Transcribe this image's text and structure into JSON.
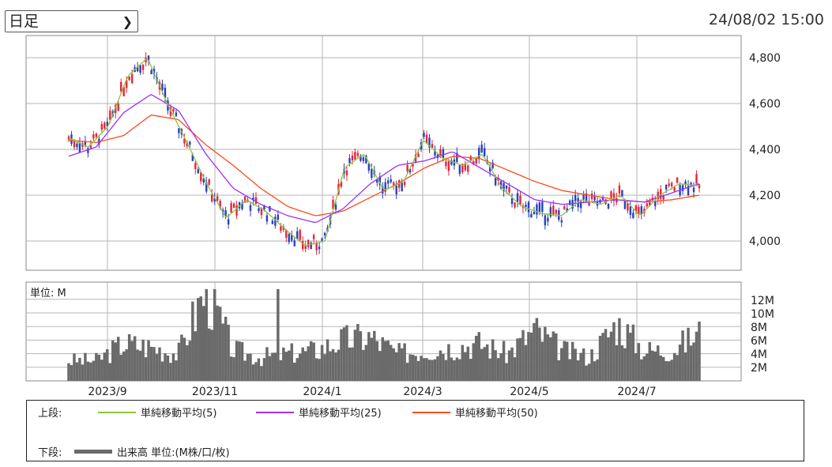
{
  "header": {
    "period_select": "日足",
    "timestamp": "24/08/02 15:00"
  },
  "colors": {
    "up": "#e8253a",
    "down": "#2a3fbf",
    "ma5": "#8cc63f",
    "ma25": "#9b30ff",
    "ma50": "#ff4a1a",
    "volume": "#6a6a6a",
    "grid": "#b5b5b5"
  },
  "legend": {
    "upper_label": "上段:",
    "lower_label": "下段:",
    "ma5_label": "単純移動平均(5)",
    "ma25_label": "単純移動平均(25)",
    "ma50_label": "単純移動平均(50)",
    "volume_label": "出来高 単位:(M株/口/枚)"
  },
  "chart_data": [
    {
      "type": "candlestick",
      "title": "",
      "y_ticks": [
        "4,000",
        "4,200",
        "4,400",
        "4,600",
        "4,800"
      ],
      "ylim": [
        3900,
        4900
      ],
      "x_ticks": [
        "2023/9",
        "2023/11",
        "2024/1",
        "2024/3",
        "2024/5",
        "2024/7"
      ],
      "grid": true,
      "series": [
        {
          "name": "単純移動平均(5)",
          "x": [
            "2023/8",
            "2023/8",
            "2023/9",
            "2023/9",
            "2023/9",
            "2023/10",
            "2023/10",
            "2023/10",
            "2023/11",
            "2023/11",
            "2023/11",
            "2023/12",
            "2023/12",
            "2024/1",
            "2024/1",
            "2024/1",
            "2024/2",
            "2024/2",
            "2024/2",
            "2024/3",
            "2024/3",
            "2024/3",
            "2024/4",
            "2024/4",
            "2024/5",
            "2024/5",
            "2024/5",
            "2024/6",
            "2024/6",
            "2024/7",
            "2024/7",
            "2024/7",
            "2024/8"
          ],
          "values": [
            4450,
            4410,
            4500,
            4720,
            4800,
            4600,
            4430,
            4250,
            4100,
            4180,
            4130,
            4050,
            3980,
            4000,
            4320,
            4380,
            4220,
            4260,
            4440,
            4360,
            4330,
            4380,
            4230,
            4150,
            4120,
            4110,
            4180,
            4160,
            4200,
            4110,
            4200,
            4250,
            4240
          ]
        },
        {
          "name": "単純移動平均(25)",
          "x": [
            "2023/8",
            "2023/9",
            "2023/9",
            "2023/10",
            "2023/10",
            "2023/11",
            "2023/11",
            "2023/12",
            "2023/12",
            "2024/1",
            "2024/1",
            "2024/2",
            "2024/2",
            "2024/3",
            "2024/3",
            "2024/4",
            "2024/4",
            "2024/5",
            "2024/5",
            "2024/6",
            "2024/6",
            "2024/7",
            "2024/7",
            "2024/8"
          ],
          "values": [
            4370,
            4410,
            4560,
            4640,
            4570,
            4380,
            4230,
            4160,
            4110,
            4080,
            4140,
            4250,
            4330,
            4350,
            4390,
            4320,
            4250,
            4180,
            4160,
            4170,
            4180,
            4170,
            4210,
            4250
          ]
        },
        {
          "name": "単純移動平均(50)",
          "x": [
            "2023/8",
            "2023/9",
            "2023/9",
            "2023/10",
            "2023/10",
            "2023/11",
            "2023/11",
            "2023/12",
            "2023/12",
            "2024/1",
            "2024/1",
            "2024/2",
            "2024/2",
            "2024/3",
            "2024/3",
            "2024/4",
            "2024/4",
            "2024/5",
            "2024/5",
            "2024/6",
            "2024/6",
            "2024/7",
            "2024/7",
            "2024/8"
          ],
          "values": [
            4440,
            4430,
            4460,
            4550,
            4530,
            4420,
            4330,
            4230,
            4150,
            4110,
            4130,
            4190,
            4250,
            4320,
            4370,
            4360,
            4310,
            4260,
            4220,
            4200,
            4180,
            4170,
            4180,
            4200
          ]
        }
      ]
    },
    {
      "type": "bar",
      "title": "",
      "unit_label": "単位: M",
      "y_ticks": [
        "2M",
        "4M",
        "6M",
        "8M",
        "10M",
        "12M"
      ],
      "ylim": [
        0,
        13.5
      ],
      "x_ticks": [
        "2023/9",
        "2023/11",
        "2024/1",
        "2024/3",
        "2024/5",
        "2024/7"
      ],
      "grid": true,
      "series": [
        {
          "name": "出来高",
          "x": [
            "2023/8",
            "2023/9",
            "2023/9",
            "2023/10",
            "2023/10",
            "2023/11",
            "2023/11",
            "2023/12",
            "2023/12",
            "2024/1",
            "2024/1",
            "2024/2",
            "2024/2",
            "2024/3",
            "2024/3",
            "2024/4",
            "2024/4",
            "2024/5",
            "2024/5",
            "2024/6",
            "2024/6",
            "2024/7",
            "2024/7",
            "2024/8"
          ],
          "values": [
            3,
            3,
            5.5,
            5,
            4,
            13.5,
            4.5,
            3.5,
            4,
            4.5,
            6,
            6.5,
            4,
            4.5,
            5,
            5.5,
            4,
            7.5,
            4.5,
            3.5,
            8.5,
            4.5,
            4.5,
            7
          ]
        }
      ]
    }
  ]
}
